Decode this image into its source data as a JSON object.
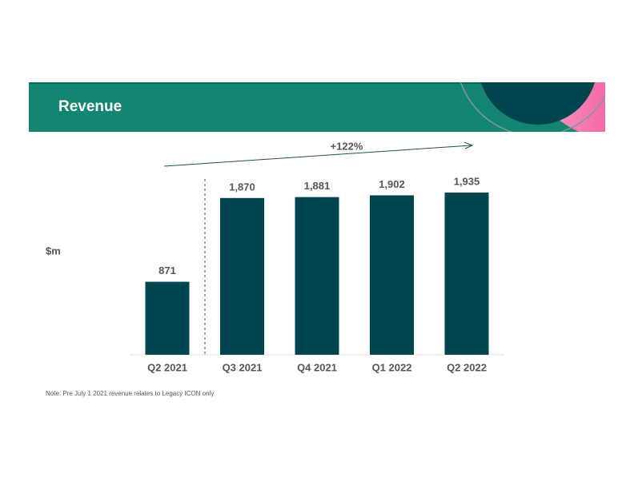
{
  "chart_data": {
    "type": "bar",
    "title": "Revenue",
    "y_label": "$m",
    "categories": [
      "Q2 2021",
      "Q3 2021",
      "Q4 2021",
      "Q1 2022",
      "Q2 2022"
    ],
    "values": [
      871,
      1870,
      1881,
      1902,
      1935
    ],
    "value_labels": [
      "871",
      "1,870",
      "1,881",
      "1,902",
      "1,935"
    ],
    "color": "#00454f",
    "annotation": "+122%",
    "note": "Note:  Pre July 1 2021 revenue relates to Legacy ICON only"
  }
}
